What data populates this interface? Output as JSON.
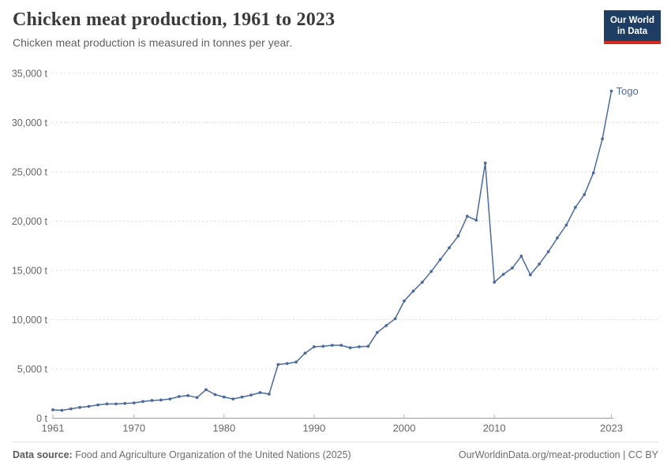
{
  "header": {
    "title": "Chicken meat production, 1961 to 2023",
    "subtitle": "Chicken meat production is measured in tonnes per year.",
    "logo_line1": "Our World",
    "logo_line2": "in Data"
  },
  "chart_data": {
    "type": "line",
    "title": "Chicken meat production, 1961 to 2023",
    "ylabel": "",
    "xlabel": "",
    "unit": "t",
    "ylim": [
      0,
      35000
    ],
    "ytick_step": 5000,
    "x_ticks": [
      1961,
      1970,
      1980,
      1990,
      2000,
      2010,
      2023
    ],
    "grid": true,
    "legend_position": "end-of-line-label",
    "line_color": "#4c6a9c",
    "series": [
      {
        "name": "Togo",
        "x": [
          1961,
          1962,
          1963,
          1964,
          1965,
          1966,
          1967,
          1968,
          1969,
          1970,
          1971,
          1972,
          1973,
          1974,
          1975,
          1976,
          1977,
          1978,
          1979,
          1980,
          1981,
          1982,
          1983,
          1984,
          1985,
          1986,
          1987,
          1988,
          1989,
          1990,
          1991,
          1992,
          1993,
          1994,
          1995,
          1996,
          1997,
          1998,
          1999,
          2000,
          2001,
          2002,
          2003,
          2004,
          2005,
          2006,
          2007,
          2008,
          2009,
          2010,
          2011,
          2012,
          2013,
          2014,
          2015,
          2016,
          2017,
          2018,
          2019,
          2020,
          2021,
          2022,
          2023
        ],
        "values": [
          850,
          800,
          950,
          1100,
          1200,
          1350,
          1450,
          1450,
          1500,
          1550,
          1700,
          1800,
          1850,
          1950,
          2200,
          2300,
          2100,
          2900,
          2400,
          2150,
          1950,
          2150,
          2350,
          2600,
          2450,
          5450,
          5550,
          5700,
          6600,
          7250,
          7300,
          7400,
          7400,
          7150,
          7250,
          7300,
          8700,
          9400,
          10100,
          11900,
          12900,
          13800,
          14900,
          16100,
          17300,
          18500,
          20500,
          20100,
          25900,
          13800,
          14600,
          15250,
          16450,
          14550,
          15650,
          16900,
          18300,
          19600,
          21400,
          22700,
          24900,
          28350,
          33200
        ]
      }
    ]
  },
  "footer": {
    "source_label": "Data source:",
    "source_text": " Food and Agriculture Organization of the United Nations (2025)",
    "link_text": "OurWorldinData.org/meat-production | CC BY"
  }
}
